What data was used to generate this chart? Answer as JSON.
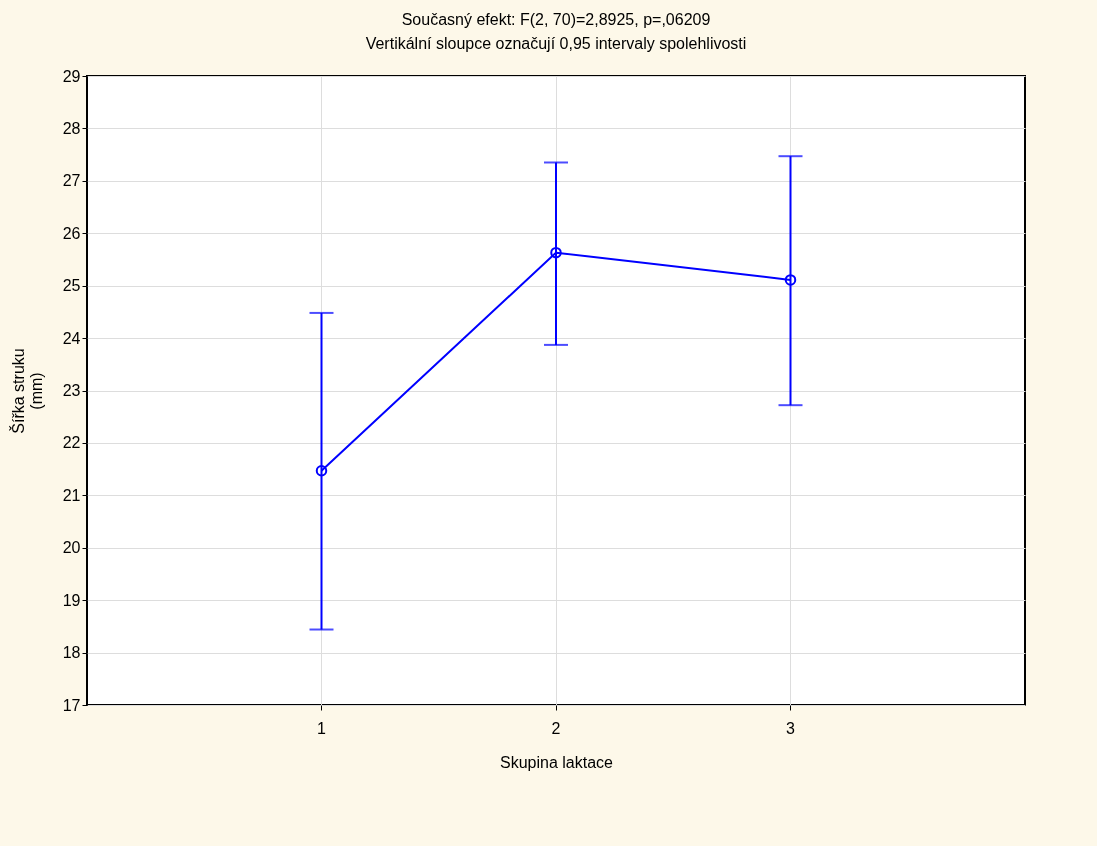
{
  "chart_data": {
    "type": "line",
    "title": "Současný efekt: F(2, 70)=2,8925, p=,06209",
    "subtitle": "Vertikální sloupce označují 0,95 intervaly spolehlivosti",
    "xlabel": "Skupina laktace",
    "ylabel": "Šířka struku\n(mm)",
    "categories": [
      "1",
      "2",
      "3"
    ],
    "series": [
      {
        "color": "#0000ff",
        "values": [
          21.47,
          25.63,
          25.11
        ],
        "errors": [
          [
            18.44,
            24.48
          ],
          [
            23.87,
            27.35
          ],
          [
            22.72,
            27.47
          ]
        ]
      }
    ],
    "ylim": [
      17,
      29
    ],
    "yticks": [
      17,
      18,
      19,
      20,
      21,
      22,
      23,
      24,
      25,
      26,
      27,
      28,
      29
    ],
    "grid": true,
    "marker": "circle",
    "line_style": "solid"
  }
}
